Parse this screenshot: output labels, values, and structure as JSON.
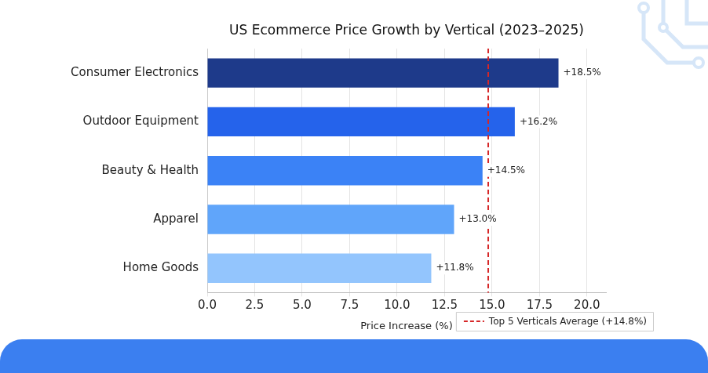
{
  "chart_data": {
    "type": "bar",
    "orientation": "horizontal",
    "title": "US Ecommerce Price Growth by Vertical (2023–2025)",
    "x_label": "Price Increase (%)",
    "categories": [
      "Consumer Electronics",
      "Outdoor Equipment",
      "Beauty & Health",
      "Apparel",
      "Home Goods"
    ],
    "values": [
      18.5,
      16.2,
      14.5,
      13.0,
      11.8
    ],
    "value_labels": [
      "+18.5%",
      "+16.2%",
      "+14.5%",
      "+13.0%",
      "+11.8%"
    ],
    "data_labels": true,
    "colors": [
      "#1e3a8a",
      "#2563eb",
      "#3b82f6",
      "#60a5fa",
      "#93c5fd"
    ],
    "xlim": [
      0,
      21
    ],
    "xticks": [
      {
        "value": 0,
        "label": "0.0"
      },
      {
        "value": 2.5,
        "label": "2.5"
      },
      {
        "value": 5,
        "label": "5.0"
      },
      {
        "value": 7.5,
        "label": "7.5"
      },
      {
        "value": 10,
        "label": "10.0"
      },
      {
        "value": 12.5,
        "label": "12.5"
      },
      {
        "value": 15,
        "label": "15.0"
      },
      {
        "value": 17.5,
        "label": "17.5"
      },
      {
        "value": 20,
        "label": "20.0"
      }
    ],
    "grid": true,
    "average": {
      "value": 14.8,
      "label": "Top 5 Verticals Average (+14.8%)"
    },
    "legend": "bottom right"
  }
}
